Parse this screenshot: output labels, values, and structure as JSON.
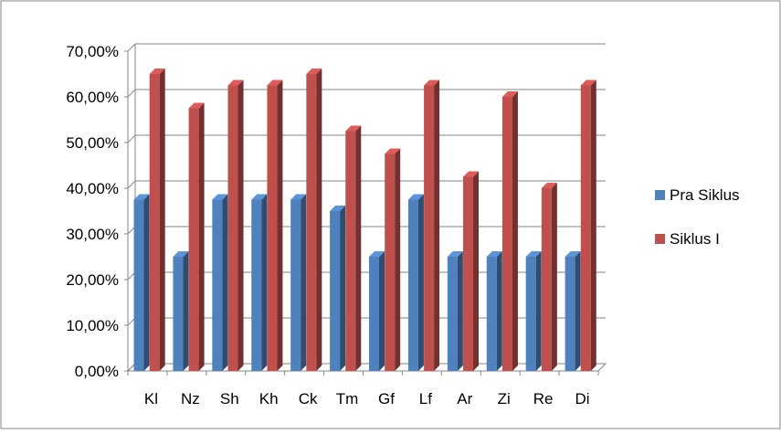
{
  "chart_data": {
    "type": "bar",
    "style": "3d-clustered-column",
    "categories": [
      "Kl",
      "Nz",
      "Sh",
      "Kh",
      "Ck",
      "Tm",
      "Gf",
      "Lf",
      "Ar",
      "Zi",
      "Re",
      "Di"
    ],
    "series": [
      {
        "name": "Pra Siklus",
        "color": "#4F81BD",
        "values": [
          37.5,
          25.0,
          37.5,
          37.5,
          37.5,
          35.0,
          25.0,
          37.5,
          25.0,
          25.0,
          25.0,
          25.0
        ]
      },
      {
        "name": "Siklus I",
        "color": "#C0504D",
        "values": [
          65.0,
          57.5,
          62.5,
          62.5,
          65.0,
          52.5,
          47.5,
          62.5,
          42.5,
          60.0,
          40.0,
          62.5
        ]
      }
    ],
    "y_ticks": [
      "0,00%",
      "10,00%",
      "20,00%",
      "30,00%",
      "40,00%",
      "50,00%",
      "60,00%",
      "70,00%"
    ],
    "ylim": [
      0,
      70
    ],
    "grid": true,
    "legend_position": "right",
    "title": "",
    "xlabel": "",
    "ylabel": ""
  }
}
